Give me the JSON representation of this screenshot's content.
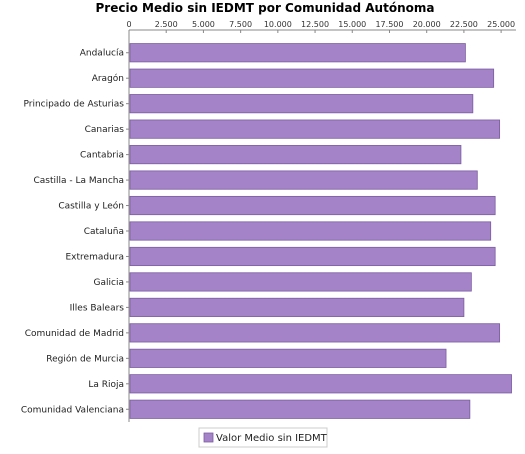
{
  "chart_data": {
    "type": "bar",
    "orientation": "horizontal",
    "title": "Precio Medio sin IEDMT por Comunidad Autónoma",
    "xlabel": "",
    "ylabel": "",
    "xlim": [
      0,
      26000
    ],
    "x_ticks": [
      0,
      2500,
      5000,
      7500,
      10000,
      12500,
      15000,
      17500,
      20000,
      22500,
      25000
    ],
    "x_tick_labels": [
      "0",
      "2.500",
      "5.000",
      "7.500",
      "10.000",
      "12.500",
      "15.000",
      "17.500",
      "20.000",
      "22.500",
      "25.000"
    ],
    "x_axis_position": "top",
    "grid": false,
    "legend_position": "bottom",
    "categories": [
      "Andalucía",
      "Aragón",
      "Principado de Asturias",
      "Canarias",
      "Cantabria",
      "Castilla - La Mancha",
      "Castilla y León",
      "Cataluña",
      "Extremadura",
      "Galicia",
      "Illes Balears",
      "Comunidad de Madrid",
      "Región de Murcia",
      "La Rioja",
      "Comunidad Valenciana"
    ],
    "series": [
      {
        "name": "Valor Medio sin IEDMT",
        "color": "#a583c9",
        "values": [
          22600,
          24500,
          23100,
          24900,
          22300,
          23400,
          24600,
          24300,
          24600,
          23000,
          22500,
          24900,
          21300,
          25700,
          22900
        ]
      }
    ]
  }
}
